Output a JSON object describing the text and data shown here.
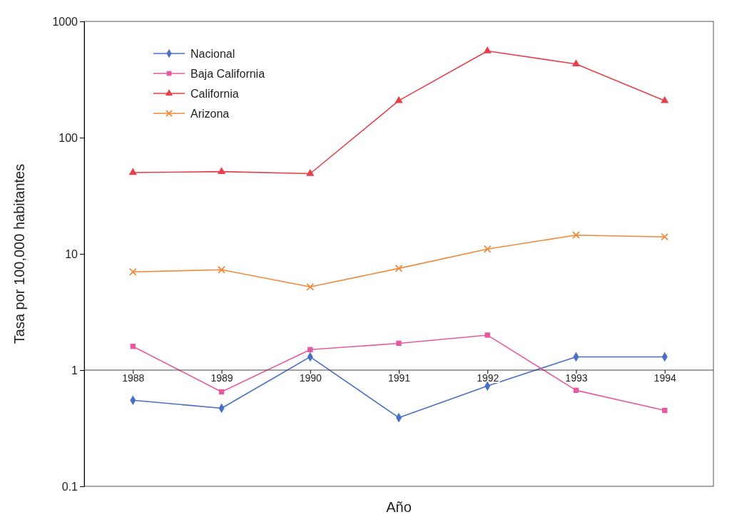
{
  "chart_data": {
    "type": "line",
    "xlabel": "Año",
    "ylabel": "Tasa por 100,000 habitantes",
    "categories": [
      "1988",
      "1989",
      "1990",
      "1991",
      "1992",
      "1993",
      "1994"
    ],
    "series": [
      {
        "name": "Nacional",
        "color": "#4a6fc4",
        "marker": "diamond",
        "values": [
          0.55,
          0.47,
          1.3,
          0.39,
          0.73,
          1.3,
          1.3
        ]
      },
      {
        "name": "Baja California",
        "color": "#e65aa0",
        "marker": "square",
        "values": [
          1.6,
          0.65,
          1.5,
          1.7,
          2.0,
          0.67,
          0.45
        ]
      },
      {
        "name": "California",
        "color": "#e8404a",
        "marker": "triangle",
        "values": [
          50,
          51,
          49,
          208,
          556,
          430,
          208
        ]
      },
      {
        "name": "Arizona",
        "color": "#f08a3c",
        "marker": "cross",
        "values": [
          7.0,
          7.3,
          5.2,
          7.5,
          11,
          14.5,
          14
        ]
      }
    ],
    "log": true,
    "ylim": [
      0.1,
      1000
    ],
    "yticks": [
      0.1,
      1,
      10,
      100,
      1000
    ],
    "grid": false,
    "legend": "top left",
    "line_style": "solid"
  }
}
